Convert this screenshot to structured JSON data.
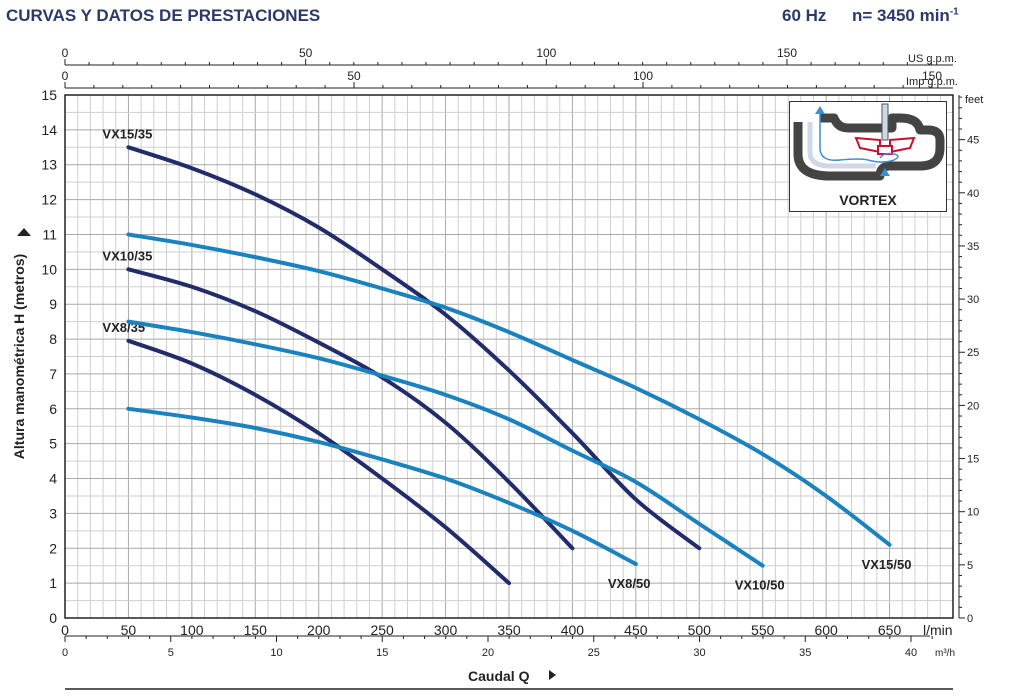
{
  "header": {
    "title": "CURVAS Y DATOS DE PRESTACIONES",
    "frequency": "60 Hz",
    "speed_prefix": "n= 3450 min",
    "speed_exp": "-1"
  },
  "inset": {
    "label": "VORTEX"
  },
  "chart_data": {
    "type": "line",
    "title": "",
    "ylabel": "Altura manométrica H (metros)",
    "xlabel": "Caudal Q",
    "grid": true,
    "axes": {
      "x_lmin": {
        "unit": "l/min",
        "range": [
          0,
          700
        ],
        "ticks": [
          0,
          50,
          100,
          150,
          200,
          250,
          300,
          350,
          400,
          450,
          500,
          550,
          600,
          650
        ]
      },
      "x_m3h": {
        "unit": "m³/h",
        "range": [
          0,
          42
        ],
        "ticks": [
          0,
          5,
          10,
          15,
          20,
          25,
          30,
          35,
          40
        ]
      },
      "x_usgpm": {
        "unit": "US g.p.m.",
        "range": [
          0,
          185
        ],
        "ticks": [
          0,
          50,
          100,
          150
        ]
      },
      "x_impgpm": {
        "unit": "Imp g.p.m.",
        "range": [
          0,
          154
        ],
        "ticks": [
          0,
          50,
          100,
          150
        ]
      },
      "y_m": {
        "unit": "",
        "range": [
          0,
          15
        ],
        "ticks": [
          0,
          1,
          2,
          3,
          4,
          5,
          6,
          7,
          8,
          9,
          10,
          11,
          12,
          13,
          14,
          15
        ]
      },
      "y_feet": {
        "unit": "feet",
        "range": [
          0,
          49.2
        ],
        "ticks": [
          0,
          5,
          10,
          15,
          20,
          25,
          30,
          35,
          40,
          45
        ]
      }
    },
    "series": [
      {
        "name": "VX15/35",
        "color": "#232c6a",
        "label_pos": "left",
        "x": [
          50,
          100,
          150,
          200,
          250,
          300,
          350,
          400,
          450,
          500
        ],
        "y": [
          13.5,
          12.9,
          12.15,
          11.2,
          10.0,
          8.7,
          7.1,
          5.3,
          3.4,
          2.0
        ]
      },
      {
        "name": "VX10/35",
        "color": "#232c6a",
        "label_pos": "left",
        "x": [
          50,
          100,
          150,
          200,
          250,
          300,
          350,
          400
        ],
        "y": [
          10.0,
          9.5,
          8.8,
          7.9,
          6.9,
          5.6,
          3.9,
          2.0
        ]
      },
      {
        "name": "VX8/35",
        "color": "#232c6a",
        "label_pos": "left",
        "x": [
          50,
          100,
          150,
          200,
          250,
          300,
          350
        ],
        "y": [
          7.95,
          7.3,
          6.4,
          5.3,
          4.0,
          2.6,
          1.0
        ]
      },
      {
        "name": "VX15/50",
        "color": "#1b82c0",
        "label_pos": "right",
        "x": [
          50,
          100,
          150,
          200,
          250,
          300,
          350,
          400,
          450,
          500,
          550,
          600,
          650
        ],
        "y": [
          11.0,
          10.7,
          10.35,
          9.95,
          9.45,
          8.9,
          8.2,
          7.4,
          6.6,
          5.7,
          4.7,
          3.5,
          2.1
        ]
      },
      {
        "name": "VX10/50",
        "color": "#1b82c0",
        "label_pos": "right",
        "x": [
          50,
          100,
          150,
          200,
          250,
          300,
          350,
          400,
          450,
          500,
          550
        ],
        "y": [
          8.5,
          8.2,
          7.85,
          7.45,
          6.95,
          6.4,
          5.7,
          4.8,
          3.9,
          2.7,
          1.5
        ]
      },
      {
        "name": "VX8/50",
        "color": "#1b82c0",
        "label_pos": "right",
        "x": [
          50,
          100,
          150,
          200,
          250,
          300,
          350,
          400,
          450
        ],
        "y": [
          6.0,
          5.75,
          5.45,
          5.05,
          4.55,
          4.0,
          3.3,
          2.5,
          1.55
        ]
      }
    ]
  }
}
